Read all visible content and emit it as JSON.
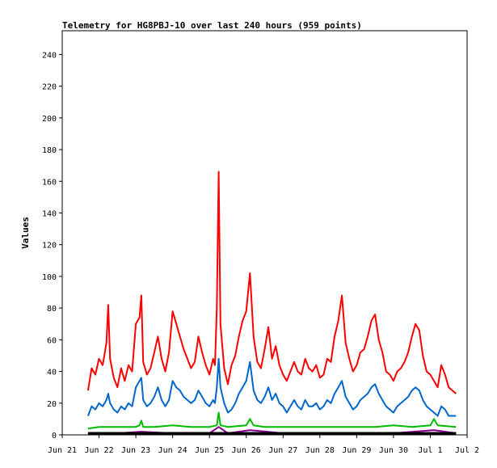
{
  "chart_data": {
    "type": "line",
    "title": "Telemetry for HG8PBJ-10 over last 240 hours (959 points)",
    "xlabel": "",
    "ylabel": "Values",
    "ylim": [
      0,
      255
    ],
    "xlim": [
      "Jun 21",
      "Jul 2"
    ],
    "yticks": [
      0,
      20,
      40,
      60,
      80,
      100,
      120,
      140,
      160,
      180,
      200,
      220,
      240
    ],
    "xticks": [
      "Jun 21",
      "Jun 22",
      "Jun 23",
      "Jun 24",
      "Jun 25",
      "Jun 26",
      "Jun 27",
      "Jun 28",
      "Jun 29",
      "Jun 30",
      "Jul 1",
      "Jul 2"
    ],
    "grid": false,
    "legend": "none",
    "x_unit": "days",
    "series": [
      {
        "color": "#ff0000",
        "x": [
          0.7,
          0.8,
          0.9,
          1.0,
          1.1,
          1.2,
          1.25,
          1.3,
          1.4,
          1.5,
          1.6,
          1.7,
          1.8,
          1.9,
          2.0,
          2.1,
          2.15,
          2.2,
          2.3,
          2.4,
          2.5,
          2.6,
          2.7,
          2.8,
          2.9,
          3.0,
          3.1,
          3.2,
          3.3,
          3.4,
          3.5,
          3.6,
          3.7,
          3.8,
          3.9,
          4.0,
          4.1,
          4.15,
          4.2,
          4.25,
          4.3,
          4.4,
          4.5,
          4.6,
          4.7,
          4.8,
          4.9,
          5.0,
          5.1,
          5.2,
          5.3,
          5.4,
          5.5,
          5.6,
          5.7,
          5.8,
          5.9,
          6.0,
          6.1,
          6.2,
          6.3,
          6.4,
          6.5,
          6.6,
          6.7,
          6.8,
          6.9,
          7.0,
          7.1,
          7.2,
          7.3,
          7.4,
          7.5,
          7.6,
          7.7,
          7.8,
          7.9,
          8.0,
          8.1,
          8.2,
          8.3,
          8.4,
          8.5,
          8.6,
          8.7,
          8.8,
          8.9,
          9.0,
          9.1,
          9.2,
          9.3,
          9.4,
          9.5,
          9.6,
          9.7,
          9.8,
          9.9,
          10.0,
          10.1,
          10.2,
          10.3,
          10.4,
          10.5,
          10.6,
          10.7
        ],
        "values": [
          28,
          42,
          38,
          48,
          44,
          58,
          82,
          48,
          36,
          30,
          42,
          34,
          44,
          40,
          70,
          74,
          88,
          46,
          38,
          42,
          52,
          62,
          48,
          40,
          52,
          78,
          70,
          62,
          54,
          48,
          42,
          46,
          62,
          52,
          44,
          38,
          48,
          44,
          80,
          166,
          70,
          42,
          32,
          44,
          50,
          62,
          72,
          78,
          102,
          62,
          46,
          42,
          54,
          68,
          48,
          56,
          44,
          38,
          34,
          40,
          46,
          40,
          38,
          48,
          42,
          40,
          44,
          36,
          38,
          48,
          46,
          62,
          72,
          88,
          58,
          48,
          40,
          44,
          52,
          54,
          62,
          72,
          76,
          60,
          52,
          40,
          38,
          34,
          40,
          42,
          46,
          52,
          62,
          70,
          66,
          50,
          40,
          38,
          34,
          30,
          44,
          38,
          30,
          28,
          26
        ]
      },
      {
        "color": "#0066cc",
        "x": [
          0.7,
          0.8,
          0.9,
          1.0,
          1.1,
          1.2,
          1.25,
          1.3,
          1.4,
          1.5,
          1.6,
          1.7,
          1.8,
          1.9,
          2.0,
          2.1,
          2.15,
          2.2,
          2.3,
          2.4,
          2.5,
          2.6,
          2.7,
          2.8,
          2.9,
          3.0,
          3.1,
          3.2,
          3.3,
          3.4,
          3.5,
          3.6,
          3.7,
          3.8,
          3.9,
          4.0,
          4.1,
          4.15,
          4.2,
          4.25,
          4.3,
          4.4,
          4.5,
          4.6,
          4.7,
          4.8,
          4.9,
          5.0,
          5.1,
          5.2,
          5.3,
          5.4,
          5.5,
          5.6,
          5.7,
          5.8,
          5.9,
          6.0,
          6.1,
          6.2,
          6.3,
          6.4,
          6.5,
          6.6,
          6.7,
          6.8,
          6.9,
          7.0,
          7.1,
          7.2,
          7.3,
          7.4,
          7.5,
          7.6,
          7.7,
          7.8,
          7.9,
          8.0,
          8.1,
          8.2,
          8.3,
          8.4,
          8.5,
          8.6,
          8.7,
          8.8,
          8.9,
          9.0,
          9.1,
          9.2,
          9.3,
          9.4,
          9.5,
          9.6,
          9.7,
          9.8,
          9.9,
          10.0,
          10.1,
          10.2,
          10.3,
          10.4,
          10.5,
          10.6,
          10.7
        ],
        "values": [
          12,
          18,
          16,
          20,
          18,
          22,
          26,
          20,
          16,
          14,
          18,
          16,
          20,
          18,
          30,
          34,
          36,
          22,
          18,
          20,
          24,
          30,
          22,
          18,
          22,
          34,
          30,
          28,
          24,
          22,
          20,
          22,
          28,
          24,
          20,
          18,
          22,
          20,
          30,
          48,
          30,
          20,
          14,
          16,
          20,
          26,
          30,
          34,
          46,
          28,
          22,
          20,
          24,
          30,
          22,
          26,
          20,
          18,
          14,
          18,
          22,
          18,
          16,
          22,
          18,
          18,
          20,
          16,
          18,
          22,
          20,
          26,
          30,
          34,
          24,
          20,
          16,
          18,
          22,
          24,
          26,
          30,
          32,
          26,
          22,
          18,
          16,
          14,
          18,
          20,
          22,
          24,
          28,
          30,
          28,
          22,
          18,
          16,
          14,
          12,
          18,
          16,
          12,
          12,
          12
        ]
      },
      {
        "color": "#00bb00",
        "x": [
          0.7,
          1.0,
          1.5,
          2.0,
          2.1,
          2.15,
          2.2,
          2.5,
          3.0,
          3.5,
          4.0,
          4.2,
          4.25,
          4.3,
          4.5,
          5.0,
          5.1,
          5.2,
          5.5,
          6.0,
          6.5,
          7.0,
          7.5,
          8.0,
          8.5,
          9.0,
          9.5,
          10.0,
          10.1,
          10.2,
          10.7
        ],
        "values": [
          4,
          5,
          5,
          5,
          6,
          9,
          5,
          5,
          6,
          5,
          5,
          6,
          14,
          6,
          5,
          6,
          10,
          6,
          5,
          5,
          5,
          5,
          5,
          5,
          5,
          6,
          5,
          6,
          10,
          6,
          5
        ]
      },
      {
        "color": "#880088",
        "x": [
          0.7,
          1.5,
          2.15,
          3.0,
          4.0,
          4.25,
          4.5,
          5.1,
          6.0,
          7.0,
          8.0,
          9.0,
          10.1,
          10.7
        ],
        "values": [
          1,
          1,
          2,
          1,
          1,
          5,
          1,
          3,
          1,
          1,
          1,
          1,
          3,
          1
        ]
      },
      {
        "color": "#000000",
        "x": [
          0.7,
          10.7
        ],
        "values": [
          1,
          1
        ]
      }
    ]
  }
}
